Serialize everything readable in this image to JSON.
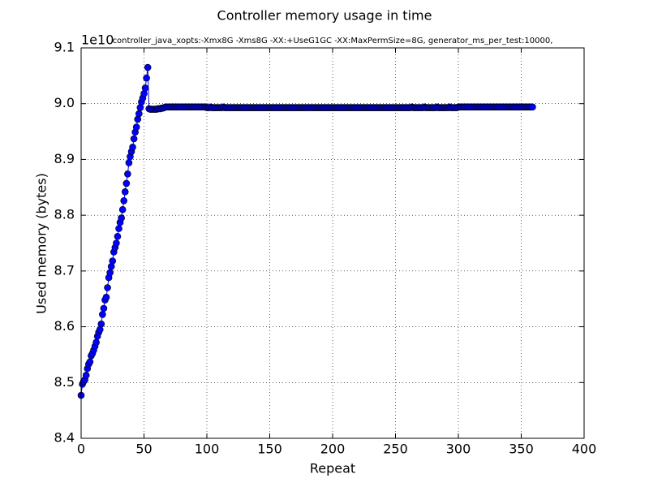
{
  "chart_data": {
    "type": "line",
    "title": "Controller memory usage in time",
    "subtitle": "controller_java_xopts:-Xmx8G -Xms8G -XX:+UseG1GC -XX:MaxPermSize=8G, generator_ms_per_test:10000,",
    "y_offset_label": "1e10",
    "xlabel": "Repeat",
    "ylabel": "Used memory (bytes)",
    "xlim": [
      0,
      400
    ],
    "ylim": [
      8.4,
      9.1
    ],
    "xticks": [
      0,
      50,
      100,
      150,
      200,
      250,
      300,
      350,
      400
    ],
    "yticks": [
      8.4,
      8.5,
      8.6,
      8.7,
      8.8,
      8.9,
      {
        "value": 9,
        "label": "9.0"
      },
      9.1
    ],
    "grid": true,
    "color": "#0000ff",
    "x": [
      0,
      1,
      2,
      3,
      4,
      5,
      6,
      7,
      8,
      9,
      10,
      11,
      12,
      13,
      14,
      15,
      16,
      17,
      18,
      19,
      20,
      21,
      22,
      23,
      24,
      25,
      26,
      27,
      28,
      29,
      30,
      31,
      32,
      33,
      34,
      35,
      36,
      37,
      38,
      39,
      40,
      41,
      42,
      43,
      44,
      45,
      46,
      47,
      48,
      49,
      50,
      51,
      52,
      53,
      54,
      55,
      56,
      57,
      58,
      59,
      60,
      61,
      62,
      63,
      64,
      65,
      66,
      67,
      68,
      69,
      70,
      71,
      72,
      73,
      74,
      75,
      76,
      77,
      78,
      79,
      80,
      81,
      82,
      83,
      84,
      85,
      86,
      87,
      88,
      89,
      90,
      91,
      92,
      93,
      94,
      95,
      96,
      97,
      98,
      99,
      100,
      101,
      102,
      103,
      104,
      105,
      106,
      107,
      108,
      109,
      110,
      111,
      112,
      113,
      114,
      115,
      116,
      117,
      118,
      119,
      120,
      121,
      122,
      123,
      124,
      125,
      126,
      127,
      128,
      129,
      130,
      131,
      132,
      133,
      134,
      135,
      136,
      137,
      138,
      139,
      140,
      141,
      142,
      143,
      144,
      145,
      146,
      147,
      148,
      149,
      150,
      151,
      152,
      153,
      154,
      155,
      156,
      157,
      158,
      159,
      160,
      161,
      162,
      163,
      164,
      165,
      166,
      167,
      168,
      169,
      170,
      171,
      172,
      173,
      174,
      175,
      176,
      177,
      178,
      179,
      180,
      181,
      182,
      183,
      184,
      185,
      186,
      187,
      188,
      189,
      190,
      191,
      192,
      193,
      194,
      195,
      196,
      197,
      198,
      199,
      200,
      201,
      202,
      203,
      204,
      205,
      206,
      207,
      208,
      209,
      210,
      211,
      212,
      213,
      214,
      215,
      216,
      217,
      218,
      219,
      220,
      221,
      222,
      223,
      224,
      225,
      226,
      227,
      228,
      229,
      230,
      231,
      232,
      233,
      234,
      235,
      236,
      237,
      238,
      239,
      240,
      241,
      242,
      243,
      244,
      245,
      246,
      247,
      248,
      249,
      250,
      251,
      252,
      253,
      254,
      255,
      256,
      257,
      258,
      259,
      260,
      261,
      262,
      263,
      264,
      265,
      266,
      267,
      268,
      269,
      270,
      271,
      272,
      273,
      274,
      275,
      276,
      277,
      278,
      279,
      280,
      281,
      282,
      283,
      284,
      285,
      286,
      287,
      288,
      289,
      290,
      291,
      292,
      293,
      294,
      295,
      296,
      297,
      298,
      299,
      300,
      301,
      302,
      303,
      304,
      305,
      306,
      307,
      308,
      309,
      310,
      311,
      312,
      313,
      314,
      315,
      316,
      317,
      318,
      319,
      320,
      321,
      322,
      323,
      324,
      325,
      326,
      327,
      328,
      329,
      330,
      331,
      332,
      333,
      334,
      335,
      336,
      337,
      338,
      339,
      340,
      341,
      342,
      343,
      344,
      345,
      346,
      347,
      348,
      349,
      350,
      351,
      352,
      353,
      354,
      355,
      356,
      357,
      358,
      359
    ],
    "values": [
      8.477,
      8.497,
      8.502,
      8.505,
      8.513,
      8.525,
      8.533,
      8.537,
      8.548,
      8.552,
      8.558,
      8.565,
      8.572,
      8.583,
      8.59,
      8.595,
      8.605,
      8.622,
      8.633,
      8.648,
      8.653,
      8.67,
      8.688,
      8.697,
      8.708,
      8.718,
      8.734,
      8.742,
      8.75,
      8.762,
      8.776,
      8.787,
      8.795,
      8.81,
      8.826,
      8.842,
      8.857,
      8.874,
      8.894,
      8.905,
      8.914,
      8.922,
      8.937,
      8.949,
      8.958,
      8.972,
      8.982,
      8.993,
      9.003,
      9.01,
      9.018,
      9.028,
      9.046,
      9.065,
      8.991,
      8.99,
      8.99,
      8.99,
      8.99,
      8.99,
      8.99,
      8.991,
      8.991,
      8.991,
      8.992,
      8.992,
      8.993,
      8.994,
      8.994,
      8.994,
      8.994,
      8.994,
      8.994,
      8.994,
      8.994,
      8.994,
      8.994,
      8.994,
      8.994,
      8.994,
      8.994,
      8.994,
      8.994,
      8.994,
      8.994,
      8.994,
      8.994,
      8.994,
      8.994,
      8.994,
      8.994,
      8.994,
      8.994,
      8.994,
      8.994,
      8.994,
      8.994,
      8.994,
      8.994,
      8.994,
      8.993,
      8.993,
      8.993,
      8.994,
      8.993,
      8.993,
      8.993,
      8.993,
      8.993,
      8.993,
      8.993,
      8.993,
      8.993,
      8.994,
      8.993,
      8.993,
      8.993,
      8.993,
      8.993,
      8.993,
      8.993,
      8.993,
      8.993,
      8.993,
      8.993,
      8.993,
      8.993,
      8.993,
      8.993,
      8.993,
      8.993,
      8.993,
      8.993,
      8.993,
      8.993,
      8.993,
      8.993,
      8.993,
      8.993,
      8.993,
      8.993,
      8.993,
      8.993,
      8.993,
      8.993,
      8.993,
      8.993,
      8.993,
      8.993,
      8.993,
      8.993,
      8.993,
      8.993,
      8.993,
      8.993,
      8.993,
      8.993,
      8.993,
      8.993,
      8.993,
      8.993,
      8.993,
      8.993,
      8.993,
      8.993,
      8.993,
      8.993,
      8.993,
      8.993,
      8.993,
      8.993,
      8.993,
      8.993,
      8.993,
      8.993,
      8.993,
      8.993,
      8.993,
      8.993,
      8.993,
      8.993,
      8.993,
      8.993,
      8.993,
      8.993,
      8.993,
      8.993,
      8.993,
      8.993,
      8.993,
      8.993,
      8.993,
      8.993,
      8.993,
      8.993,
      8.993,
      8.993,
      8.993,
      8.993,
      8.993,
      8.993,
      8.993,
      8.993,
      8.993,
      8.993,
      8.993,
      8.993,
      8.993,
      8.993,
      8.993,
      8.993,
      8.993,
      8.993,
      8.993,
      8.993,
      8.993,
      8.993,
      8.993,
      8.993,
      8.993,
      8.993,
      8.993,
      8.993,
      8.993,
      8.993,
      8.993,
      8.993,
      8.993,
      8.993,
      8.993,
      8.993,
      8.993,
      8.993,
      8.993,
      8.993,
      8.993,
      8.993,
      8.993,
      8.993,
      8.993,
      8.993,
      8.993,
      8.993,
      8.993,
      8.993,
      8.993,
      8.993,
      8.993,
      8.993,
      8.993,
      8.993,
      8.993,
      8.993,
      8.993,
      8.993,
      8.993,
      8.993,
      8.993,
      8.993,
      8.993,
      8.993,
      8.993,
      8.993,
      8.994,
      8.993,
      8.993,
      8.993,
      8.993,
      8.993,
      8.993,
      8.993,
      8.993,
      8.993,
      8.994,
      8.993,
      8.993,
      8.993,
      8.993,
      8.993,
      8.993,
      8.993,
      8.993,
      8.993,
      8.994,
      8.993,
      8.993,
      8.993,
      8.993,
      8.993,
      8.993,
      8.993,
      8.993,
      8.993,
      8.994,
      8.993,
      8.993,
      8.993,
      8.993,
      8.993,
      8.993,
      8.994,
      8.994,
      8.994,
      8.994,
      8.994,
      8.994,
      8.994,
      8.994,
      8.994,
      8.994,
      8.994,
      8.994,
      8.994,
      8.994,
      8.994,
      8.994,
      8.994,
      8.994,
      8.994,
      8.994,
      8.994,
      8.994,
      8.994,
      8.994,
      8.994,
      8.994,
      8.994,
      8.994,
      8.994,
      8.994,
      8.994,
      8.994,
      8.994,
      8.994,
      8.994,
      8.994,
      8.994,
      8.994,
      8.994,
      8.994,
      8.994,
      8.994,
      8.994,
      8.994,
      8.994,
      8.994,
      8.994,
      8.994,
      8.994,
      8.994,
      8.994,
      8.994,
      8.994,
      8.994,
      8.994,
      8.994,
      8.994,
      8.994,
      8.994,
      8.994
    ]
  }
}
